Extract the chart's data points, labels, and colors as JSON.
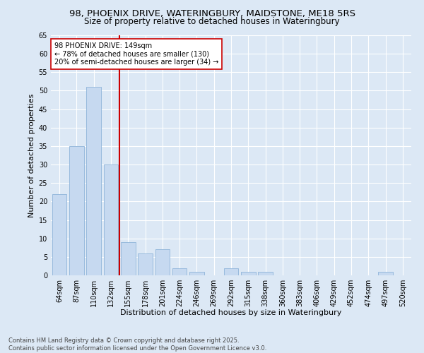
{
  "title": "98, PHOENIX DRIVE, WATERINGBURY, MAIDSTONE, ME18 5RS",
  "subtitle": "Size of property relative to detached houses in Wateringbury",
  "xlabel": "Distribution of detached houses by size in Wateringbury",
  "ylabel": "Number of detached properties",
  "categories": [
    "64sqm",
    "87sqm",
    "110sqm",
    "132sqm",
    "155sqm",
    "178sqm",
    "201sqm",
    "224sqm",
    "246sqm",
    "269sqm",
    "292sqm",
    "315sqm",
    "338sqm",
    "360sqm",
    "383sqm",
    "406sqm",
    "429sqm",
    "452sqm",
    "474sqm",
    "497sqm",
    "520sqm"
  ],
  "values": [
    22,
    35,
    51,
    30,
    9,
    6,
    7,
    2,
    1,
    0,
    2,
    1,
    1,
    0,
    0,
    0,
    0,
    0,
    0,
    1,
    0
  ],
  "bar_color": "#c6d9f0",
  "bar_edge_color": "#8fb4d9",
  "red_line_color": "#cc0000",
  "red_line_x": 3.5,
  "annotation_text": "98 PHOENIX DRIVE: 149sqm\n← 78% of detached houses are smaller (130)\n20% of semi-detached houses are larger (34) →",
  "annotation_box_facecolor": "#ffffff",
  "annotation_box_edgecolor": "#cc0000",
  "ylim": [
    0,
    65
  ],
  "yticks": [
    0,
    5,
    10,
    15,
    20,
    25,
    30,
    35,
    40,
    45,
    50,
    55,
    60,
    65
  ],
  "bg_color": "#dce8f5",
  "grid_color": "#ffffff",
  "footer_text": "Contains HM Land Registry data © Crown copyright and database right 2025.\nContains public sector information licensed under the Open Government Licence v3.0.",
  "title_fontsize": 9.5,
  "subtitle_fontsize": 8.5,
  "axis_label_fontsize": 8,
  "tick_fontsize": 7,
  "annotation_fontsize": 7,
  "footer_fontsize": 6
}
